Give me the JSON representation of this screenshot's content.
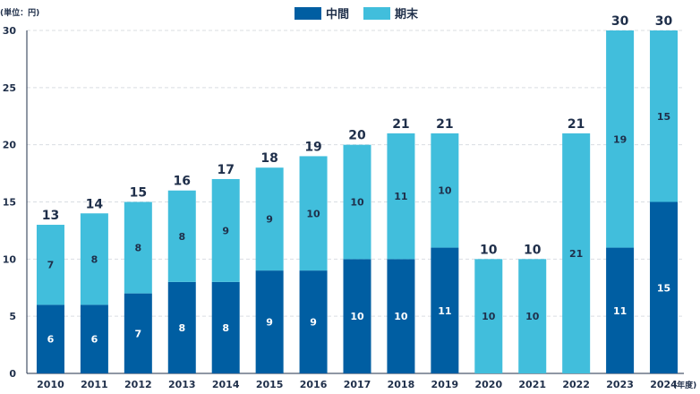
{
  "chart_data": {
    "type": "bar",
    "stacked": true,
    "y_unit_label": "(単位：円)",
    "x_unit_label": "(年度)",
    "categories": [
      "2010",
      "2011",
      "2012",
      "2013",
      "2014",
      "2015",
      "2016",
      "2017",
      "2018",
      "2019",
      "2020",
      "2021",
      "2022",
      "2023",
      "2024"
    ],
    "series": [
      {
        "name": "中間",
        "color": "#005ea2",
        "label_color": "#ffffff",
        "values": [
          6,
          6,
          7,
          8,
          8,
          9,
          9,
          10,
          10,
          11,
          0,
          0,
          0,
          11,
          15
        ]
      },
      {
        "name": "期末",
        "color": "#41bedc",
        "label_color": "#1f2f4a",
        "values": [
          7,
          8,
          8,
          8,
          9,
          9,
          10,
          10,
          11,
          10,
          10,
          10,
          21,
          19,
          15
        ]
      }
    ],
    "totals": [
      13,
      14,
      15,
      16,
      17,
      18,
      19,
      20,
      21,
      21,
      10,
      10,
      21,
      30,
      30
    ],
    "ylim": [
      0,
      30
    ],
    "yticks": [
      0,
      5,
      10,
      15,
      20,
      25,
      30
    ],
    "grid": true,
    "legend_position": "top-center",
    "title": "",
    "xlabel": "",
    "ylabel": ""
  }
}
